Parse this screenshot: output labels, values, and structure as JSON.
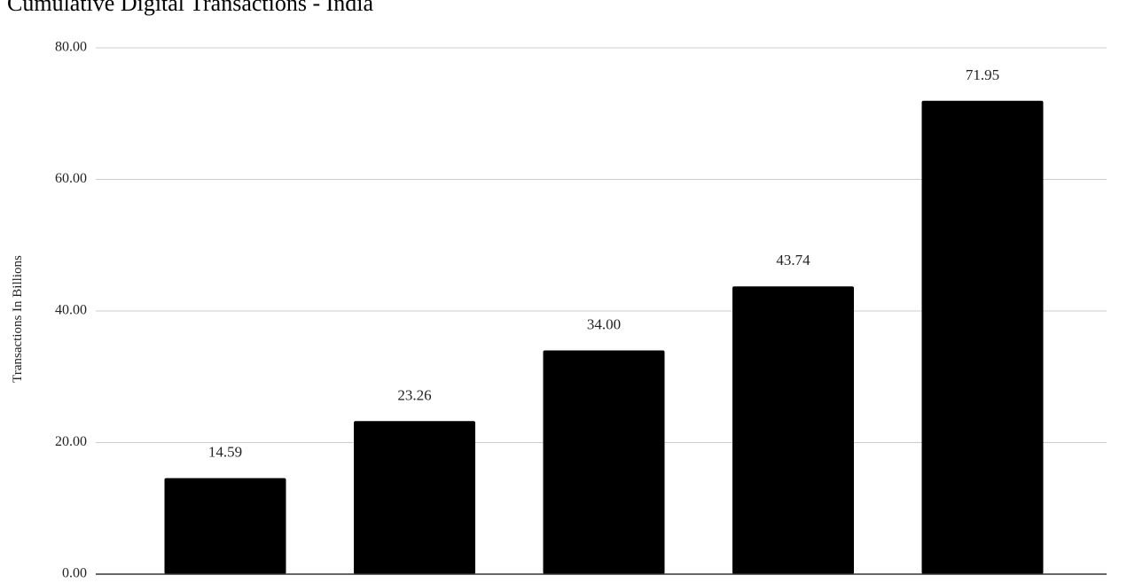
{
  "chart_data": {
    "type": "bar",
    "title": "Cumulative Digital Transactions - India",
    "ylabel": "Transactions In Billions",
    "xlabel": "",
    "categories": [
      "",
      "",
      "",
      "",
      ""
    ],
    "values": [
      14.59,
      23.26,
      34.0,
      43.74,
      71.95
    ],
    "data_labels": [
      "14.59",
      "23.26",
      "34.00",
      "43.74",
      "71.95"
    ],
    "y_ticks": [
      0,
      20,
      40,
      60,
      80
    ],
    "y_tick_labels": [
      "0.00",
      "20.00",
      "40.00",
      "60.00",
      "80.00"
    ],
    "ylim": [
      0,
      80
    ],
    "grid": true,
    "legend": "none",
    "colors": {
      "bar": "#000000",
      "grid": "#cccccc",
      "axis": "#333333",
      "background": "#ffffff"
    }
  }
}
